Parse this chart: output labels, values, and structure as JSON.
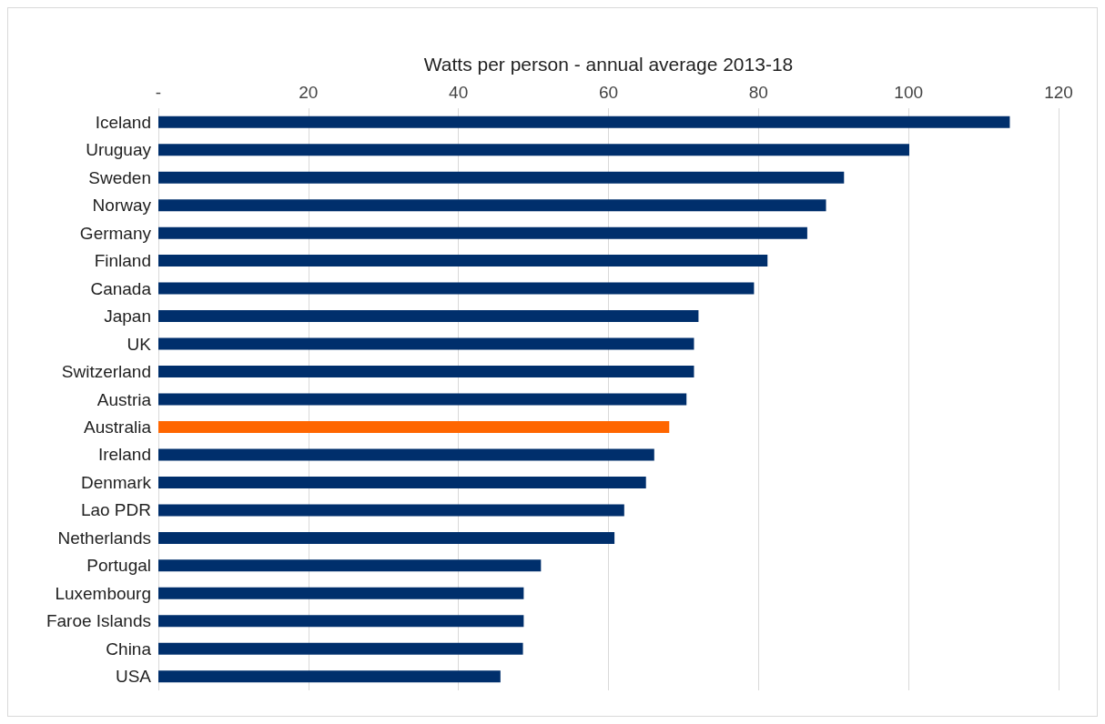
{
  "chart_data": {
    "type": "bar",
    "orientation": "horizontal",
    "xlabel": "Watts per person - annual average 2013-18",
    "categories": [
      "Iceland",
      "Uruguay",
      "Sweden",
      "Norway",
      "Germany",
      "Finland",
      "Canada",
      "Japan",
      "UK",
      "Switzerland",
      "Austria",
      "Australia",
      "Ireland",
      "Denmark",
      "Lao PDR",
      "Netherlands",
      "Portugal",
      "Luxembourg",
      "Faroe Islands",
      "China",
      "USA"
    ],
    "values": [
      113.5,
      100.1,
      91.4,
      89,
      86.5,
      81.2,
      79.4,
      72,
      71.4,
      71.4,
      70.4,
      68.1,
      66.1,
      65,
      62.1,
      60.8,
      51,
      48.7,
      48.7,
      48.6,
      45.6
    ],
    "colors": [
      "#002f6c",
      "#002f6c",
      "#002f6c",
      "#002f6c",
      "#002f6c",
      "#002f6c",
      "#002f6c",
      "#002f6c",
      "#002f6c",
      "#002f6c",
      "#002f6c",
      "#ff6600",
      "#002f6c",
      "#002f6c",
      "#002f6c",
      "#002f6c",
      "#002f6c",
      "#002f6c",
      "#002f6c",
      "#002f6c",
      "#002f6c"
    ],
    "xlim": [
      0,
      120
    ],
    "xticks": [
      {
        "value": 0,
        "label": "-"
      },
      20,
      40,
      60,
      80,
      100,
      120
    ],
    "grid": "x"
  }
}
